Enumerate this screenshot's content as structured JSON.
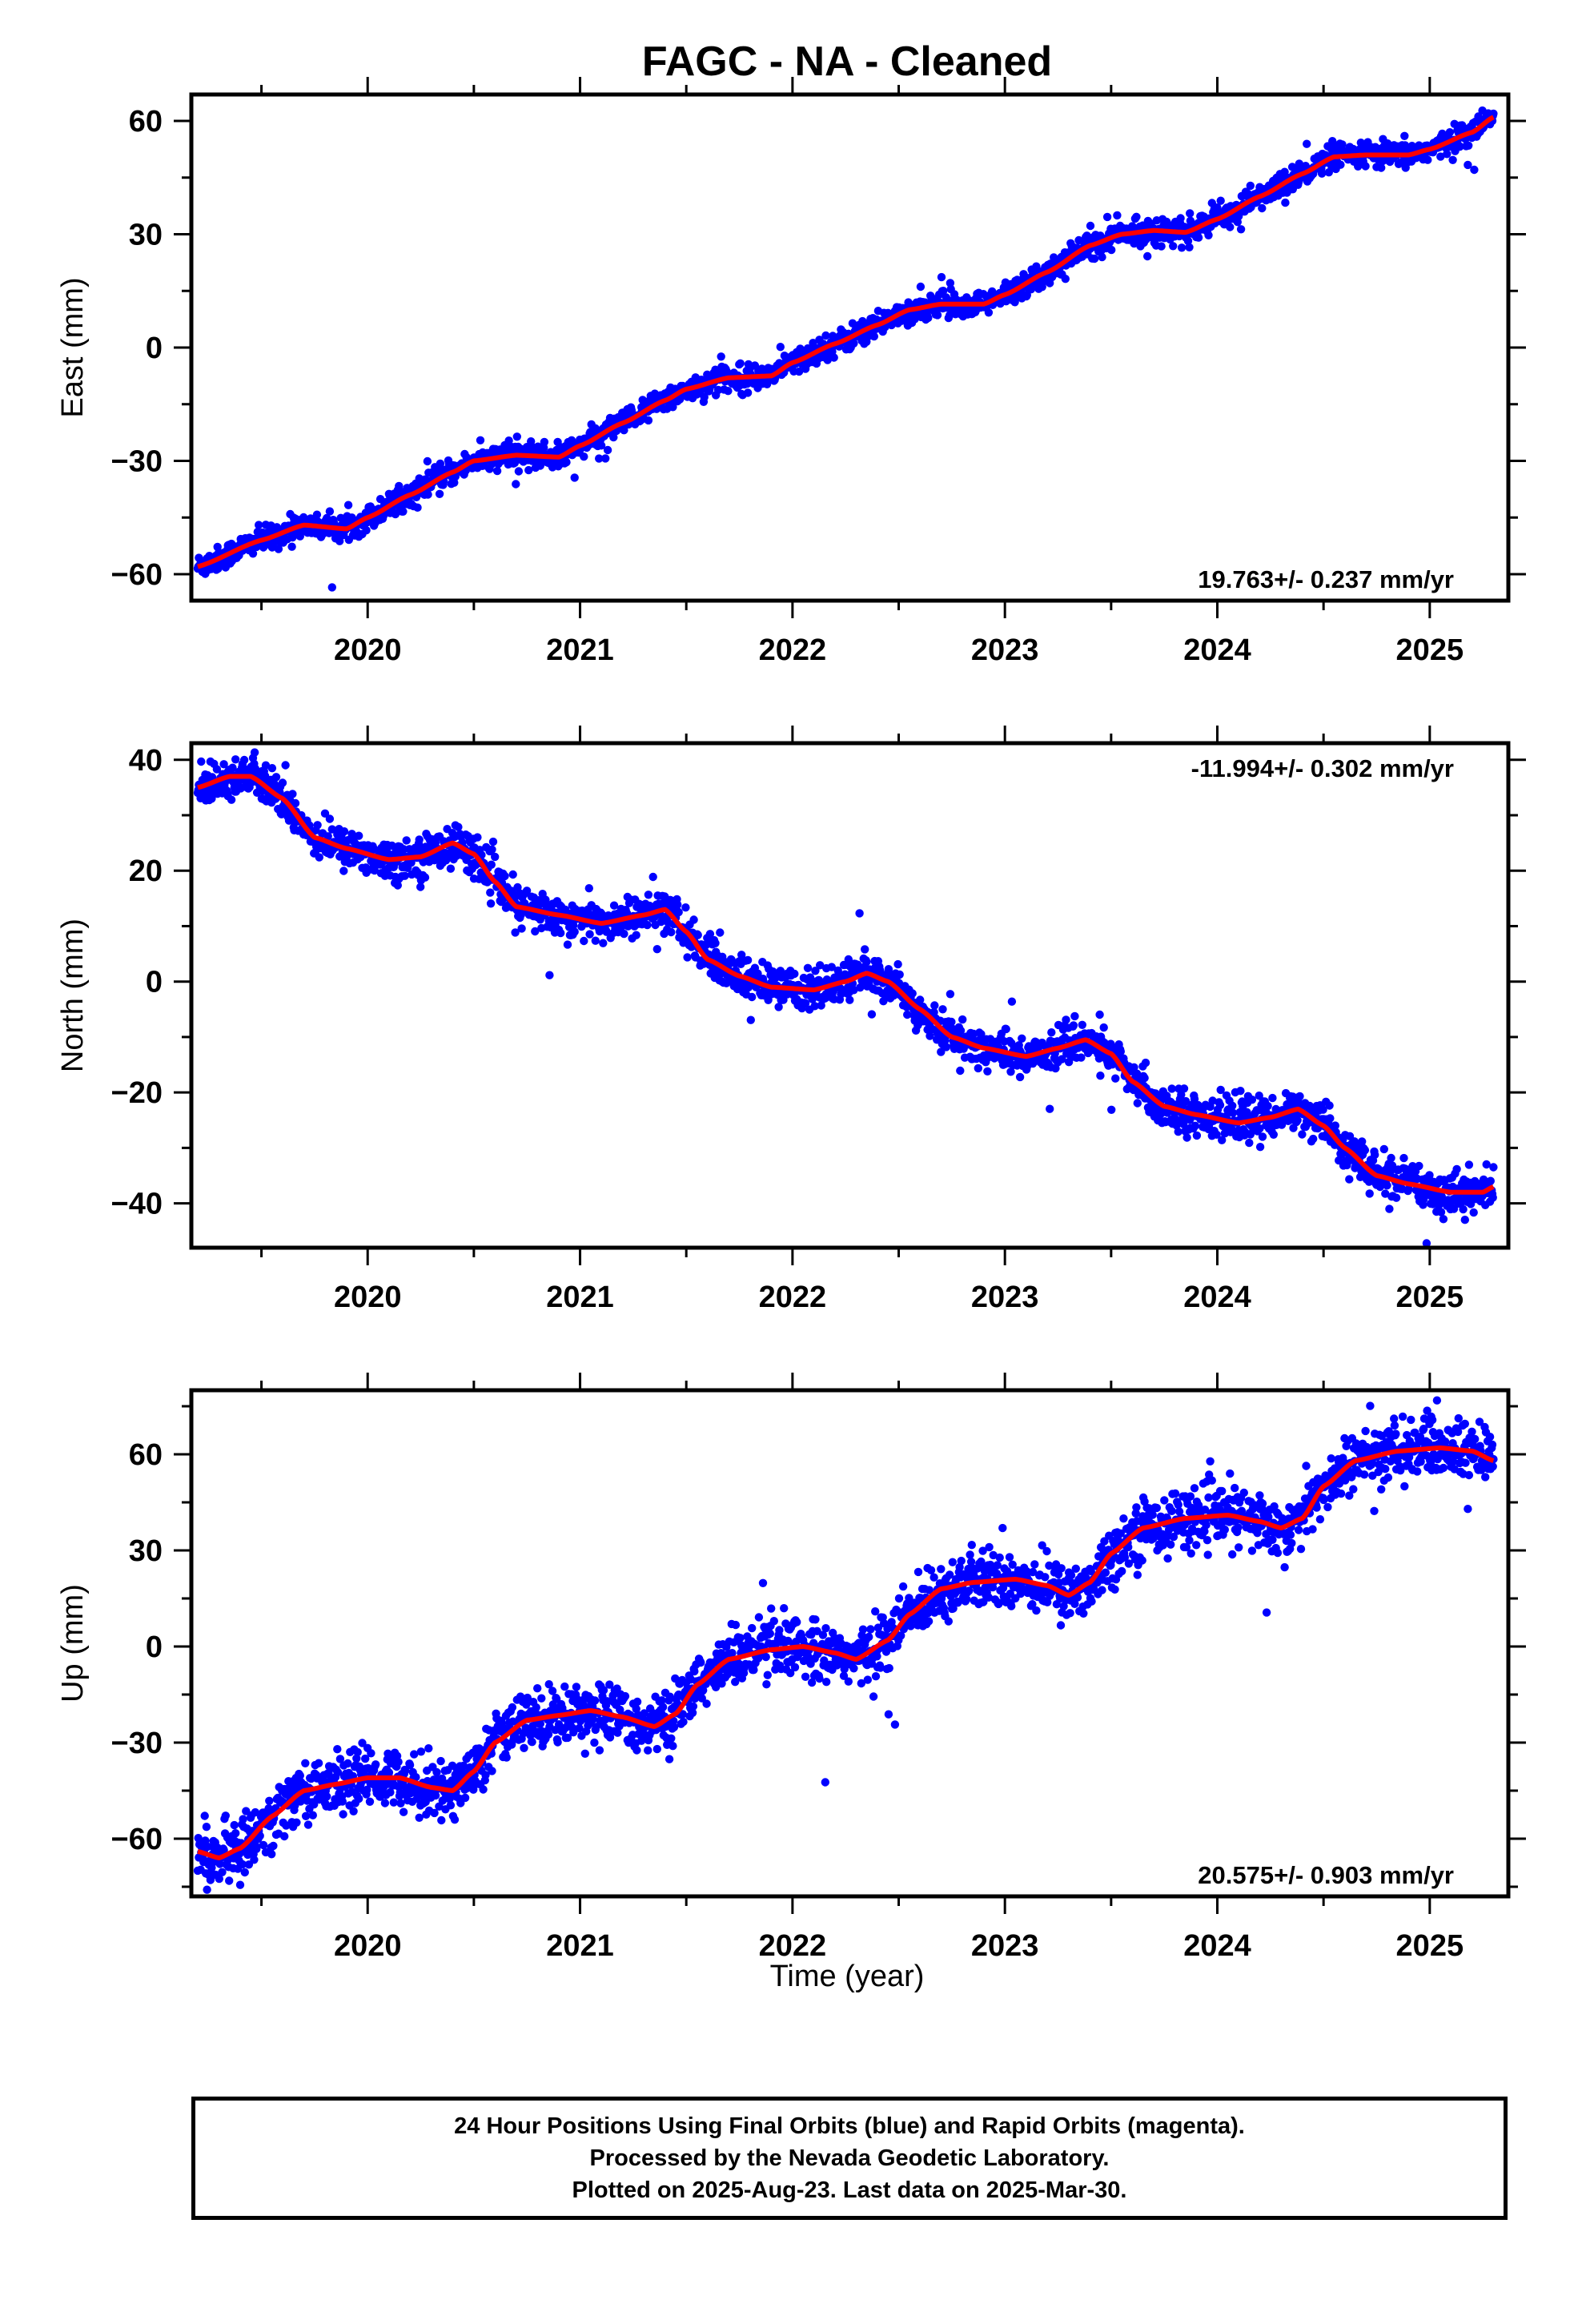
{
  "title": "FAGC  - NA - Cleaned",
  "xlabel": "Time (year)",
  "colors": {
    "points": "#0000ff",
    "fit": "#ff0000",
    "frame": "#000000"
  },
  "caption": {
    "line1": "24 Hour Positions Using Final Orbits (blue) and Rapid Orbits (magenta).",
    "line2": "Processed by the Nevada Geodetic Laboratory.",
    "line3": "Plotted on 2025-Aug-23. Last data on 2025-Mar-30."
  },
  "chart_data": [
    {
      "type": "scatter",
      "name": "east",
      "ylabel": "East (mm)",
      "rate_label": "19.763+/- 0.237 mm/yr",
      "rate_position": "bottom-right",
      "xlim": [
        2019.17,
        2025.37
      ],
      "ylim": [
        -67,
        67
      ],
      "xticks": [
        2020,
        2021,
        2022,
        2023,
        2024,
        2025
      ],
      "yticks": [
        -60,
        -30,
        0,
        30,
        60
      ],
      "scatter_sigma": 1.6,
      "fit": [
        [
          2019.2,
          -58
        ],
        [
          2019.5,
          -51
        ],
        [
          2019.7,
          -47
        ],
        [
          2019.9,
          -48
        ],
        [
          2020.0,
          -45
        ],
        [
          2020.2,
          -39
        ],
        [
          2020.4,
          -33
        ],
        [
          2020.5,
          -30
        ],
        [
          2020.7,
          -28.5
        ],
        [
          2020.9,
          -29
        ],
        [
          2021.0,
          -26
        ],
        [
          2021.2,
          -20
        ],
        [
          2021.4,
          -14
        ],
        [
          2021.5,
          -11
        ],
        [
          2021.7,
          -8
        ],
        [
          2021.9,
          -7.5
        ],
        [
          2022.0,
          -4
        ],
        [
          2022.2,
          1
        ],
        [
          2022.4,
          6
        ],
        [
          2022.55,
          10
        ],
        [
          2022.7,
          11.5
        ],
        [
          2022.9,
          11.5
        ],
        [
          2023.0,
          14
        ],
        [
          2023.2,
          20
        ],
        [
          2023.4,
          27
        ],
        [
          2023.55,
          30
        ],
        [
          2023.7,
          31
        ],
        [
          2023.85,
          30.5
        ],
        [
          2024.0,
          34
        ],
        [
          2024.2,
          40
        ],
        [
          2024.4,
          46
        ],
        [
          2024.55,
          50.5
        ],
        [
          2024.7,
          51
        ],
        [
          2024.9,
          51
        ],
        [
          2025.0,
          52.5
        ],
        [
          2025.2,
          57
        ],
        [
          2025.3,
          61
        ]
      ]
    },
    {
      "type": "scatter",
      "name": "north",
      "ylabel": "North (mm)",
      "rate_label": "-11.994+/- 0.302 mm/yr",
      "rate_position": "top-right",
      "xlim": [
        2019.17,
        2025.37
      ],
      "ylim": [
        -48,
        43
      ],
      "xticks": [
        2020,
        2021,
        2022,
        2023,
        2024,
        2025
      ],
      "yticks": [
        -40,
        -20,
        0,
        20,
        40
      ],
      "scatter_sigma": 1.8,
      "fit": [
        [
          2019.2,
          35
        ],
        [
          2019.35,
          37
        ],
        [
          2019.45,
          37
        ],
        [
          2019.6,
          33
        ],
        [
          2019.75,
          26
        ],
        [
          2019.9,
          24
        ],
        [
          2020.1,
          22
        ],
        [
          2020.25,
          22.5
        ],
        [
          2020.4,
          25
        ],
        [
          2020.5,
          23
        ],
        [
          2020.6,
          18
        ],
        [
          2020.7,
          13.5
        ],
        [
          2020.9,
          12
        ],
        [
          2021.1,
          10.5
        ],
        [
          2021.3,
          12
        ],
        [
          2021.4,
          13
        ],
        [
          2021.5,
          9
        ],
        [
          2021.6,
          4
        ],
        [
          2021.75,
          1
        ],
        [
          2021.9,
          -1
        ],
        [
          2022.1,
          -1.5
        ],
        [
          2022.25,
          0
        ],
        [
          2022.35,
          1.5
        ],
        [
          2022.45,
          0
        ],
        [
          2022.6,
          -5
        ],
        [
          2022.75,
          -10
        ],
        [
          2022.9,
          -12
        ],
        [
          2023.1,
          -13.5
        ],
        [
          2023.25,
          -12
        ],
        [
          2023.38,
          -10.5
        ],
        [
          2023.5,
          -13
        ],
        [
          2023.6,
          -18
        ],
        [
          2023.75,
          -22.5
        ],
        [
          2023.9,
          -24
        ],
        [
          2024.1,
          -25.5
        ],
        [
          2024.25,
          -24.5
        ],
        [
          2024.38,
          -23
        ],
        [
          2024.5,
          -26
        ],
        [
          2024.6,
          -30
        ],
        [
          2024.75,
          -35
        ],
        [
          2024.9,
          -36.5
        ],
        [
          2025.1,
          -38
        ],
        [
          2025.25,
          -38
        ],
        [
          2025.3,
          -37
        ]
      ]
    },
    {
      "type": "scatter",
      "name": "up",
      "ylabel": "Up (mm)",
      "rate_label": "20.575+/- 0.903 mm/yr",
      "rate_position": "bottom-right",
      "xlim": [
        2019.17,
        2025.37
      ],
      "ylim": [
        -78,
        80
      ],
      "xticks": [
        2020,
        2021,
        2022,
        2023,
        2024,
        2025
      ],
      "yticks": [
        -60,
        -30,
        0,
        30,
        60
      ],
      "scatter_sigma": 4.5,
      "fit": [
        [
          2019.2,
          -64
        ],
        [
          2019.3,
          -66
        ],
        [
          2019.4,
          -63
        ],
        [
          2019.55,
          -53
        ],
        [
          2019.7,
          -45
        ],
        [
          2019.85,
          -43
        ],
        [
          2020.0,
          -41
        ],
        [
          2020.15,
          -41
        ],
        [
          2020.3,
          -44
        ],
        [
          2020.4,
          -45
        ],
        [
          2020.5,
          -39
        ],
        [
          2020.6,
          -30
        ],
        [
          2020.75,
          -23
        ],
        [
          2020.9,
          -21.5
        ],
        [
          2021.05,
          -20
        ],
        [
          2021.2,
          -22
        ],
        [
          2021.35,
          -25
        ],
        [
          2021.45,
          -21
        ],
        [
          2021.55,
          -12
        ],
        [
          2021.7,
          -4
        ],
        [
          2021.9,
          -1
        ],
        [
          2022.05,
          0
        ],
        [
          2022.2,
          -2
        ],
        [
          2022.3,
          -4
        ],
        [
          2022.45,
          2
        ],
        [
          2022.55,
          10
        ],
        [
          2022.7,
          18
        ],
        [
          2022.85,
          20
        ],
        [
          2023.05,
          21
        ],
        [
          2023.2,
          19
        ],
        [
          2023.3,
          16
        ],
        [
          2023.4,
          20
        ],
        [
          2023.5,
          29
        ],
        [
          2023.65,
          37
        ],
        [
          2023.85,
          40
        ],
        [
          2024.05,
          41
        ],
        [
          2024.2,
          39
        ],
        [
          2024.3,
          37
        ],
        [
          2024.4,
          40
        ],
        [
          2024.5,
          50
        ],
        [
          2024.65,
          58
        ],
        [
          2024.85,
          61
        ],
        [
          2025.05,
          62
        ],
        [
          2025.2,
          61
        ],
        [
          2025.3,
          58
        ]
      ]
    }
  ]
}
